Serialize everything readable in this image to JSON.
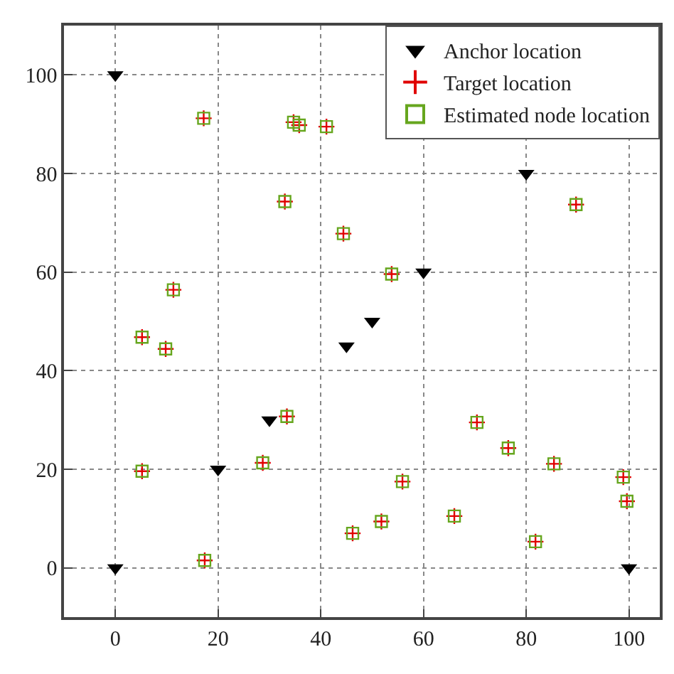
{
  "chart_data": {
    "type": "scatter",
    "xlim": [
      -10,
      106
    ],
    "ylim": [
      -10,
      110
    ],
    "xticks": [
      0,
      20,
      40,
      60,
      80,
      100
    ],
    "yticks": [
      0,
      20,
      40,
      60,
      80,
      100
    ],
    "grid": true,
    "legend": "top right",
    "series": [
      {
        "name": "Anchor location",
        "color": "#000000",
        "marker": "triangle",
        "x": [
          0,
          0,
          20,
          30,
          45,
          50,
          60,
          80,
          100
        ],
        "values": [
          100,
          0,
          20,
          30,
          45,
          50,
          60,
          80,
          0
        ]
      },
      {
        "name": "Target location",
        "color": "#e00000",
        "marker": "cross",
        "x": [
          17.2,
          34.7,
          35.8,
          41.1,
          33.0,
          44.4,
          53.8,
          11.3,
          5.2,
          9.8,
          89.7,
          33.4,
          28.7,
          5.2,
          17.4,
          46.2,
          51.8,
          55.9,
          66.0,
          70.4,
          76.5,
          85.4,
          81.8,
          98.9,
          99.6
        ],
        "values": [
          91.2,
          90.4,
          89.8,
          89.5,
          74.3,
          67.8,
          59.6,
          56.4,
          46.8,
          44.4,
          73.7,
          30.7,
          21.3,
          19.6,
          1.5,
          7.0,
          9.4,
          17.5,
          10.5,
          29.5,
          24.3,
          21.1,
          5.3,
          18.4,
          13.5
        ]
      },
      {
        "name": "Estimated node location",
        "color": "#66a61e",
        "marker": "square",
        "x": [
          17.2,
          34.7,
          35.8,
          41.1,
          33.0,
          44.4,
          53.8,
          11.3,
          5.2,
          9.8,
          89.7,
          33.4,
          28.7,
          5.2,
          17.4,
          46.2,
          51.8,
          55.9,
          66.0,
          70.4,
          76.5,
          85.4,
          81.8,
          98.9,
          99.6
        ],
        "values": [
          91.2,
          90.4,
          89.8,
          89.5,
          74.3,
          67.8,
          59.6,
          56.4,
          46.8,
          44.4,
          73.7,
          30.7,
          21.3,
          19.6,
          1.5,
          7.0,
          9.4,
          17.5,
          10.5,
          29.5,
          24.3,
          21.1,
          5.3,
          18.4,
          13.5
        ]
      }
    ]
  }
}
